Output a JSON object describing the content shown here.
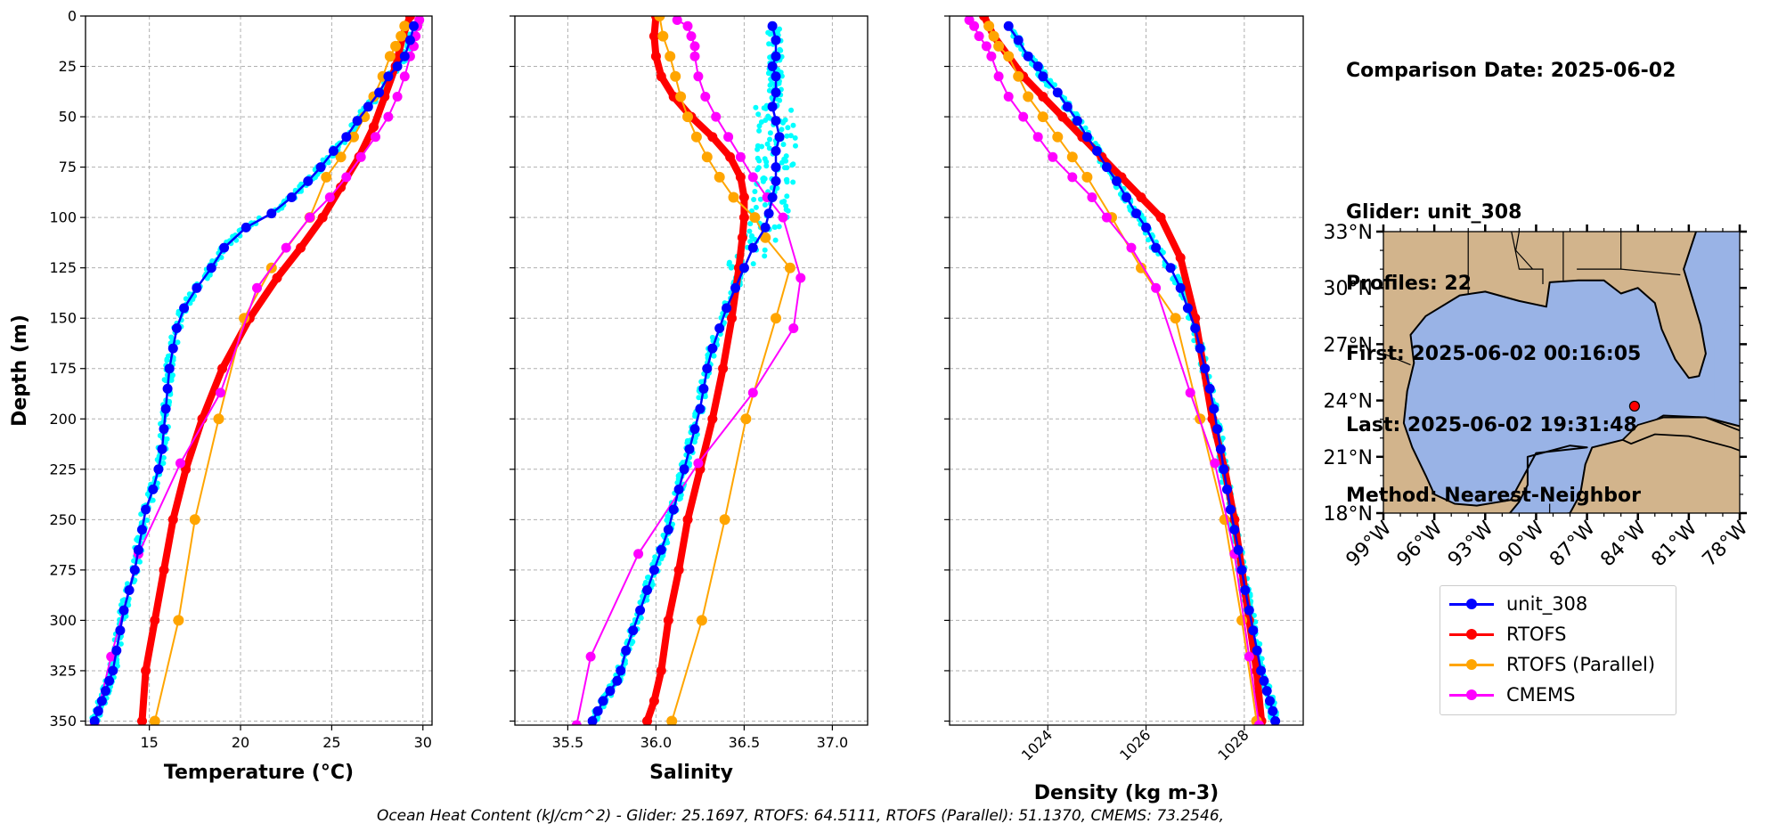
{
  "info": {
    "comparison_date": "Comparison Date: 2025-06-02",
    "glider": "Glider: unit_308",
    "profiles": "Profiles: 22",
    "first": "First: 2025-06-02 00:16:05",
    "last": "Last: 2025-06-02 19:31:48",
    "method": "Method: Nearest-Neighbor"
  },
  "footer": "Ocean Heat Content (kJ/cm^2) - Glider: 25.1697,  RTOFS: 64.5111,  RTOFS (Parallel): 51.1370,  CMEMS: 73.2546,",
  "colors": {
    "glider": "#0000ff",
    "glider_raw": "#00ffff",
    "rtofs": "#ff0000",
    "rtofs_parallel": "#ffa500",
    "cmems": "#ff00ff",
    "land": "#d2b48c",
    "ocean": "#99b3e6"
  },
  "legend": [
    {
      "label": "unit_308",
      "color": "#0000ff"
    },
    {
      "label": "RTOFS",
      "color": "#ff0000"
    },
    {
      "label": "RTOFS (Parallel)",
      "color": "#ffa500"
    },
    {
      "label": "CMEMS",
      "color": "#ff00ff"
    }
  ],
  "map": {
    "lat_ticks": [
      "33°N",
      "30°N",
      "27°N",
      "24°N",
      "21°N",
      "18°N"
    ],
    "lon_ticks": [
      "99°W",
      "96°W",
      "93°W",
      "90°W",
      "87°W",
      "84°W",
      "81°W",
      "78°W"
    ],
    "glider_position": {
      "lon": -84.2,
      "lat": 23.7
    }
  },
  "chart_data": [
    {
      "type": "line",
      "xlabel": "Temperature (°C)",
      "ylabel": "Depth (m)",
      "xlim": [
        11.5,
        30.5
      ],
      "ylim": [
        352,
        0
      ],
      "y_inverted": true,
      "xticks": [
        15,
        20,
        25,
        30
      ],
      "yticks": [
        0,
        25,
        50,
        75,
        100,
        125,
        150,
        175,
        200,
        225,
        250,
        275,
        300,
        325,
        350
      ],
      "grid": true,
      "series": [
        {
          "name": "unit_308",
          "role": "glider_mean",
          "x": [
            29.5,
            29.3,
            29.0,
            28.6,
            28.1,
            27.6,
            27.0,
            26.4,
            25.8,
            25.1,
            24.4,
            23.7,
            22.8,
            21.7,
            20.3,
            19.1,
            18.4,
            17.6,
            16.9,
            16.5,
            16.3,
            16.1,
            16.0,
            15.9,
            15.8,
            15.7,
            15.5,
            15.2,
            14.8,
            14.6,
            14.4,
            14.2,
            13.9,
            13.6,
            13.4,
            13.2,
            13.0,
            12.8,
            12.6,
            12.4,
            12.2,
            12.0
          ],
          "y": [
            5,
            12,
            20,
            25,
            30,
            38,
            45,
            52,
            60,
            67,
            75,
            82,
            90,
            98,
            105,
            115,
            125,
            135,
            145,
            155,
            165,
            175,
            185,
            195,
            205,
            215,
            225,
            235,
            245,
            255,
            265,
            275,
            285,
            295,
            305,
            315,
            325,
            330,
            335,
            340,
            345,
            350
          ]
        },
        {
          "name": "RTOFS",
          "x": [
            29.3,
            28.9,
            28.5,
            27.9,
            27.3,
            26.5,
            25.5,
            24.5,
            23.3,
            22.0,
            20.5,
            19.0,
            17.9,
            17.0,
            16.3,
            15.8,
            15.3,
            14.8,
            14.6
          ],
          "y": [
            0,
            10,
            25,
            40,
            55,
            70,
            85,
            100,
            115,
            130,
            150,
            175,
            200,
            225,
            250,
            275,
            300,
            325,
            350
          ]
        },
        {
          "name": "RTOFS (Parallel)",
          "x": [
            29.0,
            28.8,
            28.5,
            28.2,
            27.8,
            27.3,
            26.8,
            26.2,
            25.5,
            24.7,
            23.8,
            21.7,
            20.2,
            18.8,
            17.5,
            16.6,
            15.3
          ],
          "y": [
            5,
            10,
            15,
            20,
            30,
            40,
            50,
            60,
            70,
            80,
            100,
            125,
            150,
            200,
            250,
            300,
            350
          ]
        },
        {
          "name": "CMEMS",
          "x": [
            29.8,
            29.7,
            29.6,
            29.5,
            29.3,
            29.0,
            28.6,
            28.1,
            27.4,
            26.6,
            25.8,
            24.9,
            23.8,
            22.5,
            20.9,
            18.9,
            16.7,
            14.4,
            12.9,
            12.0
          ],
          "y": [
            2,
            5,
            10,
            15,
            20,
            30,
            40,
            50,
            60,
            70,
            80,
            90,
            100,
            115,
            135,
            187,
            222,
            267,
            318,
            352
          ]
        }
      ]
    },
    {
      "type": "line",
      "xlabel": "Salinity",
      "xlim": [
        35.2,
        37.2
      ],
      "ylim": [
        352,
        0
      ],
      "y_inverted": true,
      "xticks": [
        35.5,
        36.0,
        36.5,
        37.0
      ],
      "grid": true,
      "series": [
        {
          "name": "unit_308",
          "role": "glider_mean",
          "x": [
            36.66,
            36.68,
            36.68,
            36.66,
            36.68,
            36.68,
            36.66,
            36.68,
            36.7,
            36.68,
            36.68,
            36.68,
            36.66,
            36.64,
            36.62,
            36.55,
            36.5,
            36.45,
            36.4,
            36.36,
            36.32,
            36.29,
            36.27,
            36.25,
            36.22,
            36.19,
            36.16,
            36.13,
            36.1,
            36.07,
            36.03,
            35.99,
            35.95,
            35.91,
            35.87,
            35.83,
            35.8,
            35.78,
            35.74,
            35.7,
            35.67,
            35.64
          ],
          "y": [
            5,
            12,
            20,
            25,
            30,
            38,
            45,
            52,
            60,
            67,
            75,
            82,
            90,
            98,
            105,
            115,
            125,
            135,
            145,
            155,
            165,
            175,
            185,
            195,
            205,
            215,
            225,
            235,
            245,
            255,
            265,
            275,
            285,
            295,
            305,
            315,
            325,
            330,
            335,
            340,
            345,
            350
          ]
        },
        {
          "name": "RTOFS",
          "x": [
            36.0,
            35.99,
            36.0,
            36.03,
            36.1,
            36.2,
            36.32,
            36.42,
            36.48,
            36.5,
            36.5,
            36.49,
            36.47,
            36.43,
            36.38,
            36.32,
            36.25,
            36.18,
            36.13,
            36.07,
            36.03,
            35.99,
            35.95
          ],
          "y": [
            0,
            10,
            20,
            30,
            40,
            50,
            60,
            70,
            80,
            90,
            100,
            110,
            125,
            150,
            175,
            200,
            225,
            250,
            275,
            300,
            325,
            340,
            350
          ]
        },
        {
          "name": "RTOFS (Parallel)",
          "x": [
            36.02,
            36.04,
            36.08,
            36.11,
            36.14,
            36.18,
            36.23,
            36.29,
            36.36,
            36.44,
            36.56,
            36.62,
            36.76,
            36.68,
            36.51,
            36.39,
            36.26,
            36.09
          ],
          "y": [
            0,
            10,
            20,
            30,
            40,
            50,
            60,
            70,
            80,
            90,
            100,
            110,
            125,
            150,
            200,
            250,
            300,
            350
          ]
        },
        {
          "name": "CMEMS",
          "x": [
            36.12,
            36.18,
            36.2,
            36.22,
            36.22,
            36.24,
            36.28,
            36.34,
            36.41,
            36.48,
            36.55,
            36.63,
            36.72,
            36.82,
            36.78,
            36.55,
            36.24,
            35.9,
            35.63,
            35.55
          ],
          "y": [
            2,
            5,
            10,
            15,
            20,
            30,
            40,
            50,
            60,
            70,
            80,
            90,
            100,
            130,
            155,
            187,
            222,
            267,
            318,
            352
          ]
        }
      ]
    },
    {
      "type": "line",
      "xlabel": "Density (kg m-3)",
      "xlim": [
        1022.0,
        1029.2
      ],
      "ylim": [
        352,
        0
      ],
      "y_inverted": true,
      "xticks": [
        1024,
        1026,
        1028
      ],
      "grid": true,
      "series": [
        {
          "name": "unit_308",
          "role": "glider_mean",
          "x": [
            1023.2,
            1023.4,
            1023.6,
            1023.8,
            1023.9,
            1024.2,
            1024.4,
            1024.6,
            1024.8,
            1025.0,
            1025.2,
            1025.4,
            1025.6,
            1025.8,
            1026.0,
            1026.2,
            1026.5,
            1026.7,
            1026.85,
            1027.0,
            1027.1,
            1027.2,
            1027.3,
            1027.38,
            1027.45,
            1027.52,
            1027.58,
            1027.65,
            1027.72,
            1027.8,
            1027.88,
            1027.95,
            1028.02,
            1028.1,
            1028.18,
            1028.26,
            1028.34,
            1028.4,
            1028.46,
            1028.52,
            1028.58,
            1028.63
          ],
          "y": [
            5,
            12,
            20,
            25,
            30,
            38,
            45,
            52,
            60,
            67,
            75,
            82,
            90,
            98,
            105,
            115,
            125,
            135,
            145,
            155,
            165,
            175,
            185,
            195,
            205,
            215,
            225,
            235,
            245,
            255,
            265,
            275,
            285,
            295,
            305,
            315,
            325,
            330,
            335,
            340,
            345,
            350
          ]
        },
        {
          "name": "RTOFS",
          "x": [
            1022.7,
            1022.9,
            1023.2,
            1023.5,
            1023.9,
            1024.3,
            1024.7,
            1025.1,
            1025.5,
            1025.9,
            1026.3,
            1026.7,
            1027.0,
            1027.35,
            1027.6,
            1027.8,
            1027.95,
            1028.1,
            1028.25,
            1028.35
          ],
          "y": [
            0,
            10,
            20,
            30,
            40,
            50,
            60,
            70,
            80,
            90,
            100,
            120,
            150,
            200,
            225,
            250,
            275,
            300,
            325,
            350
          ]
        },
        {
          "name": "RTOFS (Parallel)",
          "x": [
            1022.8,
            1022.9,
            1023.0,
            1023.2,
            1023.4,
            1023.6,
            1023.9,
            1024.2,
            1024.5,
            1024.8,
            1025.3,
            1025.9,
            1026.6,
            1027.1,
            1027.6,
            1027.95,
            1028.25
          ],
          "y": [
            5,
            10,
            15,
            20,
            30,
            40,
            50,
            60,
            70,
            80,
            100,
            125,
            150,
            200,
            250,
            300,
            350
          ]
        },
        {
          "name": "CMEMS",
          "x": [
            1022.4,
            1022.5,
            1022.6,
            1022.75,
            1022.85,
            1023.0,
            1023.2,
            1023.5,
            1023.8,
            1024.1,
            1024.5,
            1024.9,
            1025.2,
            1025.7,
            1026.2,
            1026.9,
            1027.4,
            1027.8,
            1028.1,
            1028.3
          ],
          "y": [
            2,
            5,
            10,
            15,
            20,
            30,
            40,
            50,
            60,
            70,
            80,
            90,
            100,
            115,
            135,
            187,
            222,
            267,
            318,
            352
          ]
        }
      ]
    }
  ]
}
